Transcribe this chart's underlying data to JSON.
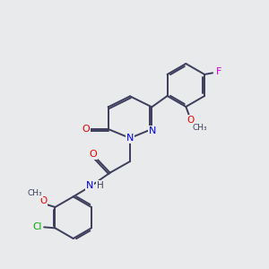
{
  "background_color": "#e8eaec",
  "bond_color": "#3d3d5c",
  "atom_colors": {
    "N": "#0000ee",
    "O": "#ee0000",
    "Cl": "#00aa00",
    "F": "#cc00cc",
    "C": "#3d3d5c",
    "H": "#3d3d5c"
  }
}
